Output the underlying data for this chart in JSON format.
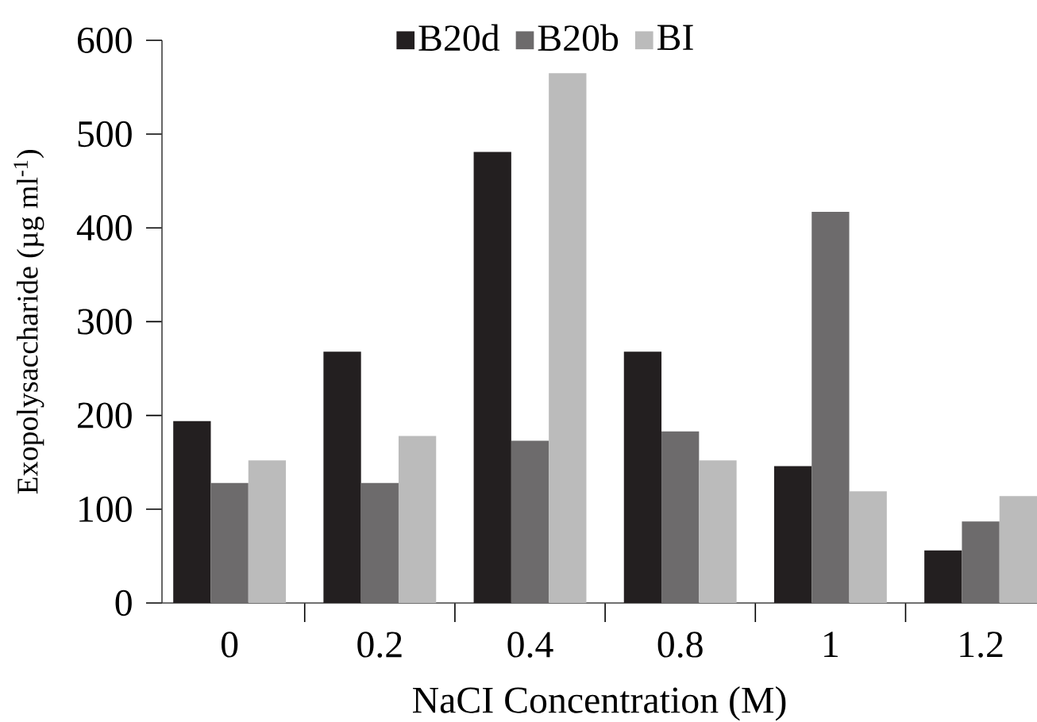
{
  "chart_data": {
    "type": "bar",
    "xlabel": "NaCI Concentration (M)",
    "ylabel": "Exopolysaccharide (µg ml$^{-1}$)",
    "categories": [
      "0",
      "0.2",
      "0.4",
      "0.8",
      "1",
      "1.2"
    ],
    "series": [
      {
        "name": "B20d",
        "color": "#231f20",
        "values": [
          194,
          268,
          481,
          268,
          146,
          56
        ]
      },
      {
        "name": "B20b",
        "color": "#6d6b6c",
        "values": [
          128,
          128,
          173,
          183,
          417,
          87
        ]
      },
      {
        "name": "BI",
        "color": "#bbbbbb",
        "values": [
          152,
          178,
          565,
          152,
          119,
          114
        ]
      }
    ],
    "ylim": [
      0,
      600
    ],
    "yticks": [
      0,
      100,
      200,
      300,
      400,
      500,
      600
    ],
    "legend": "top"
  }
}
